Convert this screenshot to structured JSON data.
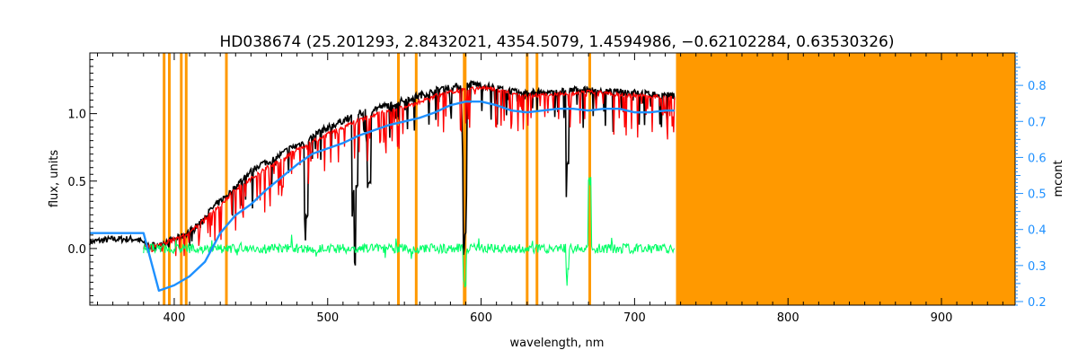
{
  "chart_data": {
    "type": "line",
    "title": "HD038674    (25.201293, 2.8432021, 4354.5079, 1.4594986, −0.62102284, 0.63530326)",
    "xlabel": "wavelength, nm",
    "ylabel": "flux, units",
    "y2label": "mcont",
    "xlim": [
      345,
      948
    ],
    "ylim": [
      -0.42,
      1.45
    ],
    "y2lim": [
      0.19,
      0.89
    ],
    "xticks": [
      400,
      500,
      600,
      700,
      800,
      900
    ],
    "yticks": [
      0.0,
      0.5,
      1.0
    ],
    "y2ticks": [
      0.2,
      0.3,
      0.4,
      0.5,
      0.6,
      0.7,
      0.8
    ],
    "colors": {
      "observed": "#000000",
      "model": "#ff0000",
      "residual": "#00ff66",
      "continuum": "#1e90ff",
      "mask": "#ff9900",
      "right_axis": "#1e90ff"
    },
    "masked_region": [
      727,
      948
    ],
    "masked_lines": [
      393.4,
      396.8,
      404.6,
      407.8,
      434.0,
      546.1,
      557.7,
      589.0,
      589.6,
      630.0,
      636.4,
      670.8
    ],
    "series": [
      {
        "id": "observed",
        "x": [
          345,
          360,
          375,
          385,
          395,
          405,
          415,
          425,
          435,
          445,
          455,
          465,
          475,
          485,
          495,
          505,
          515,
          525,
          535,
          545,
          555,
          565,
          575,
          585,
          595,
          605,
          615,
          625,
          635,
          645,
          655,
          665,
          675,
          685,
          695,
          705,
          715,
          726
        ],
        "y": [
          0.05,
          0.07,
          0.07,
          0.02,
          0.05,
          0.09,
          0.17,
          0.3,
          0.4,
          0.52,
          0.62,
          0.66,
          0.74,
          0.79,
          0.87,
          0.92,
          0.98,
          1.02,
          1.05,
          1.08,
          1.12,
          1.15,
          1.19,
          1.2,
          1.22,
          1.2,
          1.18,
          1.15,
          1.16,
          1.15,
          1.17,
          1.18,
          1.17,
          1.16,
          1.16,
          1.15,
          1.14,
          1.13
        ]
      },
      {
        "id": "model",
        "x": [
          380,
          390,
          400,
          410,
          420,
          430,
          440,
          450,
          460,
          470,
          480,
          490,
          500,
          510,
          520,
          530,
          540,
          550,
          560,
          570,
          580,
          590,
          600,
          610,
          620,
          630,
          640,
          650,
          660,
          670,
          680,
          690,
          700,
          710,
          720,
          726
        ],
        "y": [
          0.01,
          0.02,
          0.07,
          0.12,
          0.22,
          0.32,
          0.44,
          0.52,
          0.6,
          0.66,
          0.73,
          0.79,
          0.85,
          0.9,
          0.95,
          0.99,
          1.02,
          1.05,
          1.09,
          1.13,
          1.16,
          1.18,
          1.19,
          1.18,
          1.15,
          1.13,
          1.14,
          1.14,
          1.15,
          1.16,
          1.15,
          1.14,
          1.14,
          1.13,
          1.12,
          1.12
        ]
      },
      {
        "id": "residual",
        "x": [
          380,
          726
        ],
        "y": [
          0.0,
          0.0
        ]
      },
      {
        "id": "continuum",
        "axis": "right",
        "x": [
          345,
          380,
          390,
          400,
          410,
          420,
          430,
          440,
          450,
          460,
          470,
          480,
          490,
          500,
          510,
          520,
          530,
          540,
          550,
          560,
          570,
          580,
          590,
          600,
          610,
          620,
          630,
          640,
          650,
          660,
          670,
          680,
          690,
          700,
          710,
          720,
          726
        ],
        "y": [
          0.39,
          0.39,
          0.23,
          0.245,
          0.27,
          0.31,
          0.39,
          0.44,
          0.47,
          0.51,
          0.545,
          0.58,
          0.61,
          0.625,
          0.64,
          0.66,
          0.675,
          0.69,
          0.7,
          0.71,
          0.725,
          0.745,
          0.755,
          0.755,
          0.745,
          0.73,
          0.725,
          0.73,
          0.735,
          0.735,
          0.73,
          0.735,
          0.735,
          0.725,
          0.725,
          0.73,
          0.73
        ]
      }
    ]
  }
}
